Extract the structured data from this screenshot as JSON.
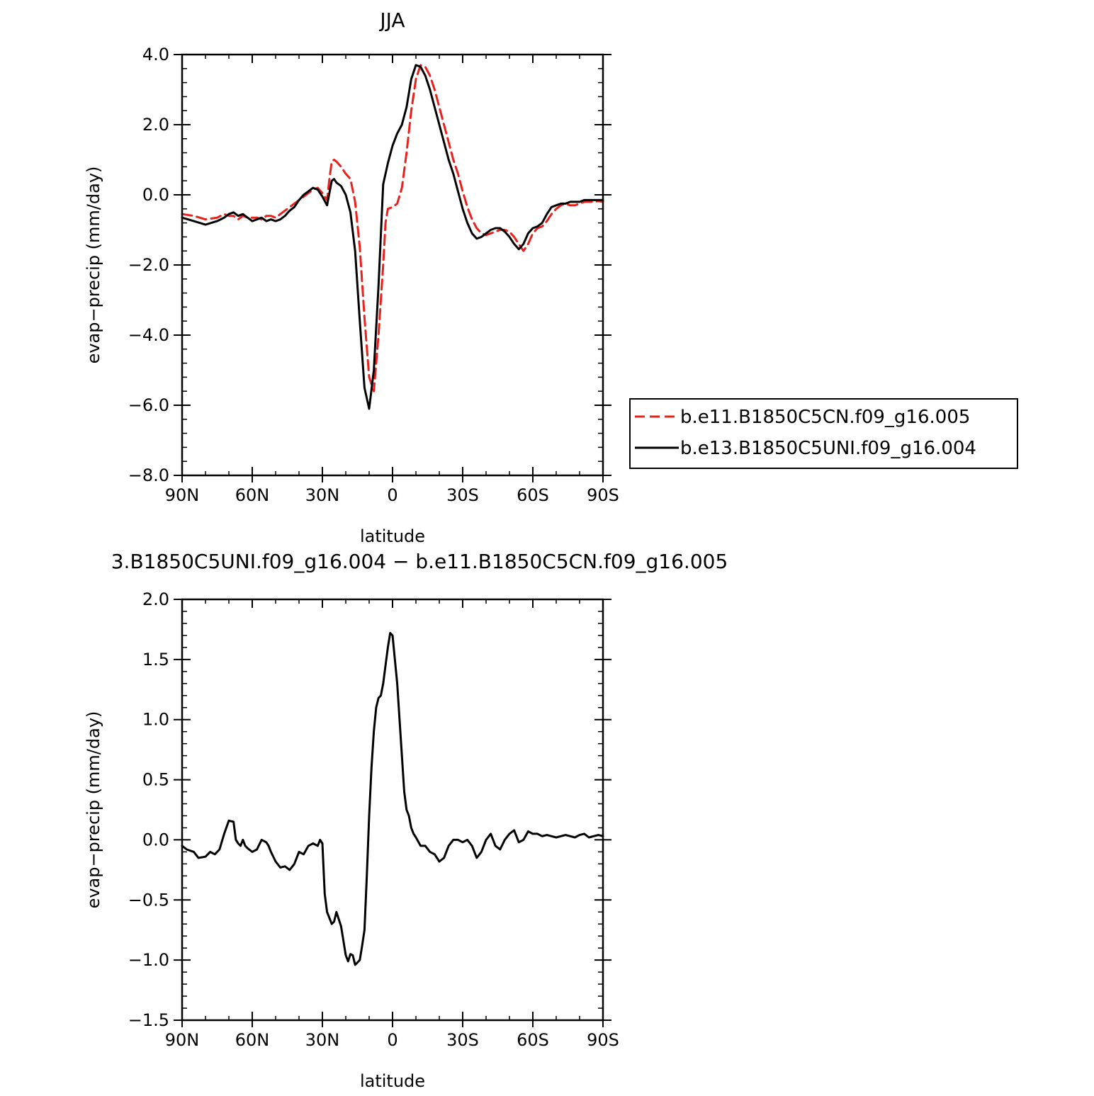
{
  "chart_data": [
    {
      "type": "line",
      "title": "JJA",
      "xlabel": "latitude",
      "ylabel": "evap−precip (mm/day)",
      "xlim": [
        90,
        -90
      ],
      "ylim": [
        -8.0,
        4.0
      ],
      "x_ticks": [
        90,
        60,
        30,
        0,
        -30,
        -60,
        -90
      ],
      "x_tick_labels": [
        "90N",
        "60N",
        "30N",
        "0",
        "30S",
        "60S",
        "90S"
      ],
      "y_ticks": [
        -8,
        -6,
        -4,
        -2,
        0,
        2,
        4
      ],
      "y_tick_labels": [
        "−8.0",
        "−6.0",
        "−4.0",
        "−2.0",
        "0.0",
        "2.0",
        "4.0"
      ],
      "grid": false,
      "legend_position": "right",
      "series": [
        {
          "name": "b.e11.B1850C5CN.f09_g16.005",
          "color": "#e8211d",
          "style": "dashed",
          "x": [
            90,
            85,
            80,
            75,
            72,
            70,
            68,
            66,
            64,
            62,
            60,
            58,
            56,
            54,
            52,
            50,
            48,
            46,
            44,
            42,
            40,
            38,
            36,
            34,
            32,
            30,
            28,
            27,
            26,
            25,
            24,
            22,
            20,
            18,
            16,
            14,
            12,
            10,
            8,
            6,
            4,
            3,
            2,
            0,
            -2,
            -4,
            -6,
            -8,
            -10,
            -12,
            -14,
            -16,
            -18,
            -20,
            -22,
            -24,
            -26,
            -28,
            -30,
            -32,
            -34,
            -36,
            -38,
            -40,
            -42,
            -44,
            -46,
            -48,
            -50,
            -52,
            -54,
            -56,
            -58,
            -60,
            -62,
            -64,
            -66,
            -68,
            -70,
            -72,
            -74,
            -76,
            -78,
            -80,
            -82,
            -84,
            -86,
            -88,
            -90
          ],
          "y": [
            -0.55,
            -0.6,
            -0.7,
            -0.65,
            -0.55,
            -0.6,
            -0.6,
            -0.7,
            -0.6,
            -0.65,
            -0.65,
            -0.65,
            -0.7,
            -0.6,
            -0.6,
            -0.65,
            -0.55,
            -0.45,
            -0.35,
            -0.25,
            -0.15,
            -0.05,
            0.05,
            0.15,
            0.2,
            0.05,
            -0.15,
            0.45,
            0.95,
            1.0,
            0.95,
            0.8,
            0.6,
            0.45,
            -0.2,
            -1.5,
            -3.5,
            -5.2,
            -5.6,
            -4.0,
            -2.0,
            -0.8,
            -0.4,
            -0.35,
            -0.25,
            0.2,
            1.2,
            2.4,
            3.3,
            3.7,
            3.65,
            3.4,
            3.0,
            2.5,
            2.0,
            1.5,
            1.0,
            0.6,
            0.1,
            -0.35,
            -0.7,
            -0.95,
            -1.1,
            -1.15,
            -1.1,
            -1.05,
            -1.0,
            -1.0,
            -1.05,
            -1.2,
            -1.4,
            -1.6,
            -1.4,
            -1.1,
            -0.95,
            -0.9,
            -0.75,
            -0.55,
            -0.4,
            -0.3,
            -0.25,
            -0.3,
            -0.3,
            -0.25,
            -0.2,
            -0.2,
            -0.2,
            -0.18,
            -0.2
          ]
        },
        {
          "name": "b.e13.B1850C5UNI.f09_g16.004",
          "color": "#000000",
          "style": "solid",
          "x": [
            90,
            85,
            80,
            75,
            72,
            70,
            68,
            66,
            64,
            62,
            60,
            58,
            56,
            54,
            52,
            50,
            48,
            46,
            44,
            42,
            40,
            38,
            36,
            34,
            32,
            30,
            28,
            27,
            26,
            25,
            24,
            22,
            20,
            18,
            16,
            14,
            12,
            10,
            8,
            6,
            4,
            2,
            0,
            -2,
            -4,
            -6,
            -8,
            -10,
            -12,
            -14,
            -16,
            -18,
            -20,
            -22,
            -24,
            -26,
            -28,
            -30,
            -32,
            -34,
            -36,
            -38,
            -40,
            -42,
            -44,
            -46,
            -48,
            -50,
            -52,
            -54,
            -56,
            -58,
            -60,
            -62,
            -64,
            -66,
            -68,
            -70,
            -72,
            -74,
            -76,
            -78,
            -80,
            -82,
            -84,
            -86,
            -88,
            -90
          ],
          "y": [
            -0.65,
            -0.75,
            -0.85,
            -0.75,
            -0.65,
            -0.55,
            -0.5,
            -0.6,
            -0.55,
            -0.65,
            -0.75,
            -0.7,
            -0.65,
            -0.75,
            -0.7,
            -0.75,
            -0.7,
            -0.6,
            -0.45,
            -0.35,
            -0.15,
            0.0,
            0.1,
            0.2,
            0.15,
            -0.05,
            -0.3,
            0.05,
            0.4,
            0.45,
            0.35,
            0.25,
            0.0,
            -0.5,
            -1.6,
            -3.6,
            -5.5,
            -6.1,
            -5.0,
            -2.6,
            0.3,
            0.9,
            1.4,
            1.75,
            2.0,
            2.5,
            3.3,
            3.7,
            3.65,
            3.4,
            3.0,
            2.5,
            2.0,
            1.5,
            1.0,
            0.6,
            0.1,
            -0.4,
            -0.8,
            -1.1,
            -1.25,
            -1.2,
            -1.1,
            -1.0,
            -0.95,
            -0.95,
            -1.05,
            -1.2,
            -1.4,
            -1.55,
            -1.4,
            -1.1,
            -0.95,
            -0.9,
            -0.8,
            -0.55,
            -0.35,
            -0.3,
            -0.25,
            -0.25,
            -0.2,
            -0.2,
            -0.2,
            -0.15,
            -0.15,
            -0.15,
            -0.15,
            -0.15
          ]
        }
      ]
    },
    {
      "type": "line",
      "title": "3.B1850C5UNI.f09_g16.004 − b.e11.B1850C5CN.f09_g16.005",
      "xlabel": "latitude",
      "ylabel": "evap−precip (mm/day)",
      "xlim": [
        90,
        -90
      ],
      "ylim": [
        -1.5,
        2.0
      ],
      "x_ticks": [
        90,
        60,
        30,
        0,
        -30,
        -60,
        -90
      ],
      "x_tick_labels": [
        "90N",
        "60N",
        "30N",
        "0",
        "30S",
        "60S",
        "90S"
      ],
      "y_ticks": [
        -1.5,
        -1.0,
        -0.5,
        0.0,
        0.5,
        1.0,
        1.5,
        2.0
      ],
      "y_tick_labels": [
        "−1.5",
        "−1.0",
        "−0.5",
        "0.0",
        "0.5",
        "1.0",
        "1.5",
        "2.0"
      ],
      "grid": false,
      "series": [
        {
          "color": "#000000",
          "style": "solid",
          "x": [
            90,
            88,
            85,
            83,
            80,
            78,
            76,
            74,
            72,
            70,
            68,
            67,
            66,
            65,
            64,
            63,
            62,
            60,
            58,
            56,
            54,
            53,
            52,
            50,
            48,
            46,
            44,
            42,
            40,
            38,
            36,
            34,
            32,
            31,
            30,
            29,
            28,
            27,
            26,
            25,
            24,
            22,
            20,
            19,
            18,
            17,
            16,
            15,
            14,
            13,
            12,
            11,
            10,
            9,
            8,
            7,
            6,
            5,
            4,
            3,
            2,
            1,
            0,
            -1,
            -2,
            -3,
            -4,
            -5,
            -6,
            -7,
            -8,
            -9,
            -10,
            -12,
            -14,
            -16,
            -18,
            -20,
            -22,
            -24,
            -26,
            -28,
            -30,
            -32,
            -34,
            -36,
            -38,
            -40,
            -42,
            -44,
            -46,
            -48,
            -50,
            -52,
            -54,
            -56,
            -58,
            -60,
            -62,
            -64,
            -66,
            -68,
            -70,
            -72,
            -74,
            -76,
            -78,
            -80,
            -82,
            -84,
            -86,
            -88,
            -90
          ],
          "y": [
            -0.05,
            -0.08,
            -0.1,
            -0.15,
            -0.14,
            -0.1,
            -0.12,
            -0.08,
            0.05,
            0.16,
            0.15,
            0.0,
            -0.03,
            -0.05,
            0.0,
            -0.05,
            -0.07,
            -0.1,
            -0.08,
            0.0,
            -0.02,
            -0.05,
            -0.1,
            -0.18,
            -0.23,
            -0.22,
            -0.25,
            -0.2,
            -0.1,
            -0.12,
            -0.05,
            -0.03,
            -0.05,
            0.0,
            -0.03,
            -0.45,
            -0.6,
            -0.65,
            -0.7,
            -0.68,
            -0.6,
            -0.72,
            -0.96,
            -1.01,
            -0.95,
            -0.96,
            -1.04,
            -1.02,
            -1.0,
            -0.88,
            -0.75,
            -0.3,
            0.2,
            0.6,
            0.9,
            1.1,
            1.18,
            1.2,
            1.3,
            1.45,
            1.6,
            1.72,
            1.7,
            1.5,
            1.3,
            1.0,
            0.7,
            0.4,
            0.25,
            0.2,
            0.1,
            0.05,
            0.02,
            -0.05,
            -0.05,
            -0.1,
            -0.12,
            -0.18,
            -0.15,
            -0.05,
            0.0,
            0.0,
            -0.02,
            0.0,
            -0.05,
            -0.15,
            -0.1,
            0.0,
            0.05,
            -0.05,
            -0.08,
            0.0,
            0.05,
            0.08,
            -0.02,
            0.0,
            0.07,
            0.05,
            0.05,
            0.03,
            0.04,
            0.03,
            0.02,
            0.03,
            0.04,
            0.03,
            0.02,
            0.04,
            0.05,
            0.02,
            0.03,
            0.04,
            0.03
          ]
        }
      ]
    }
  ]
}
